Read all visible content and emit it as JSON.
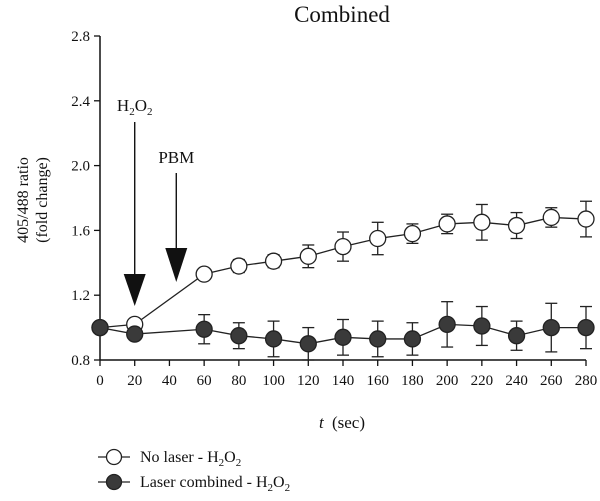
{
  "chart_data": {
    "type": "line",
    "title": "Combined",
    "xlabel_var": "t",
    "xlabel_unit": "(sec)",
    "ylabel_line1": "405/488 ratio",
    "ylabel_line2": "(fold change)",
    "xlim": [
      0,
      280
    ],
    "ylim": [
      0.8,
      2.8
    ],
    "x_ticks": [
      0,
      20,
      40,
      60,
      80,
      100,
      120,
      140,
      160,
      180,
      200,
      220,
      240,
      260,
      280
    ],
    "y_ticks": [
      "0.8",
      "1.2",
      "1.6",
      "2.0",
      "2.4",
      "2.8"
    ],
    "legend_position": "bottom-left",
    "series": [
      {
        "name": "No laser - H2O2",
        "legend_text": "No laser - H",
        "marker": "open-circle",
        "x": [
          0,
          20,
          60,
          80,
          100,
          120,
          140,
          160,
          180,
          200,
          220,
          240,
          260,
          280
        ],
        "values": [
          1.0,
          1.02,
          1.33,
          1.38,
          1.41,
          1.44,
          1.5,
          1.55,
          1.58,
          1.64,
          1.65,
          1.63,
          1.68,
          1.67
        ],
        "errors": [
          0.0,
          0.02,
          0.03,
          0.04,
          0.04,
          0.07,
          0.09,
          0.1,
          0.06,
          0.06,
          0.11,
          0.08,
          0.06,
          0.11
        ]
      },
      {
        "name": "Laser combined - H2O2",
        "legend_text": "Laser combined - H",
        "marker": "filled-circle",
        "x": [
          0,
          20,
          60,
          80,
          100,
          120,
          140,
          160,
          180,
          200,
          220,
          240,
          260,
          280
        ],
        "values": [
          1.0,
          0.96,
          0.99,
          0.95,
          0.93,
          0.9,
          0.94,
          0.93,
          0.93,
          1.02,
          1.01,
          0.95,
          1.0,
          1.0
        ],
        "errors": [
          0.0,
          0.03,
          0.09,
          0.08,
          0.11,
          0.1,
          0.11,
          0.11,
          0.1,
          0.14,
          0.12,
          0.09,
          0.15,
          0.13
        ]
      }
    ],
    "annotations": [
      {
        "text": "H",
        "sub1": "2",
        "mid": "O",
        "sub2": "2",
        "x": 20
      },
      {
        "text": "PBM",
        "x": 33
      }
    ]
  }
}
